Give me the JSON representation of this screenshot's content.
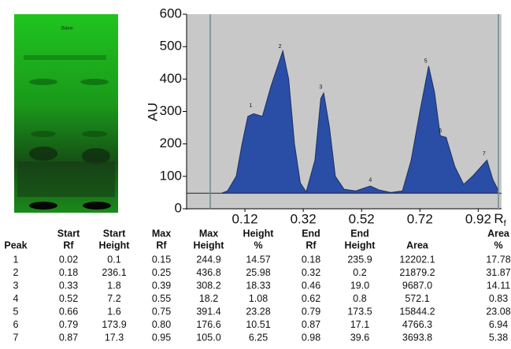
{
  "plate": {
    "label": "254nm"
  },
  "chart_data": {
    "type": "area",
    "y_label": "AU",
    "x_label": "R",
    "x_label_sub": "f",
    "xlim": [
      -0.08,
      1.0
    ],
    "ylim": [
      0,
      600
    ],
    "xticks": [
      0.12,
      0.32,
      0.52,
      0.72,
      0.92
    ],
    "yticks": [
      0,
      100,
      200,
      300,
      400,
      500,
      600
    ],
    "color": "#2a4ea6",
    "line_color": "#1d2f66",
    "baseline": 48,
    "x": [
      0.04,
      0.06,
      0.09,
      0.11,
      0.13,
      0.15,
      0.18,
      0.21,
      0.25,
      0.27,
      0.29,
      0.31,
      0.33,
      0.36,
      0.38,
      0.39,
      0.41,
      0.43,
      0.46,
      0.5,
      0.55,
      0.58,
      0.62,
      0.66,
      0.69,
      0.72,
      0.75,
      0.77,
      0.79,
      0.81,
      0.84,
      0.87,
      0.9,
      0.93,
      0.95,
      0.97,
      0.99
    ],
    "values": [
      48,
      55,
      100,
      200,
      285,
      293,
      285,
      380,
      487,
      400,
      200,
      80,
      52,
      150,
      340,
      357,
      250,
      100,
      60,
      55,
      70,
      58,
      50,
      55,
      150,
      300,
      440,
      360,
      225,
      220,
      130,
      75,
      100,
      130,
      150,
      90,
      55
    ],
    "annotations": [
      {
        "text": "1",
        "x": 0.14,
        "y": 318
      },
      {
        "text": "2",
        "x": 0.24,
        "y": 500
      },
      {
        "text": "3",
        "x": 0.38,
        "y": 375
      },
      {
        "text": "4",
        "x": 0.55,
        "y": 88
      },
      {
        "text": "5",
        "x": 0.74,
        "y": 455
      },
      {
        "text": "6",
        "x": 0.79,
        "y": 240
      },
      {
        "text": "7",
        "x": 0.94,
        "y": 170
      }
    ]
  },
  "table": {
    "header": [
      [
        "Peak"
      ],
      [
        "Start",
        "Rf"
      ],
      [
        "Start",
        "Height"
      ],
      [
        "Max",
        "Rf"
      ],
      [
        "Max",
        "Height"
      ],
      [
        "Height",
        "%"
      ],
      [
        "End",
        "Rf"
      ],
      [
        "End",
        "Height"
      ],
      [
        "Area"
      ],
      [
        "Area",
        "%"
      ]
    ],
    "rows": [
      [
        "1",
        "0.02",
        "0.1",
        "0.15",
        "244.9",
        "14.57",
        "0.18",
        "235.9",
        "12202.1",
        "17.78"
      ],
      [
        "2",
        "0.18",
        "236.1",
        "0.25",
        "436.8",
        "25.98",
        "0.32",
        "0.2",
        "21879.2",
        "31.87"
      ],
      [
        "3",
        "0.33",
        "1.8",
        "0.39",
        "308.2",
        "18.33",
        "0.46",
        "19.0",
        "9687.0",
        "14.11"
      ],
      [
        "4",
        "0.52",
        "7.2",
        "0.55",
        "18.2",
        "1.08",
        "0.62",
        "0.8",
        "572.1",
        "0.83"
      ],
      [
        "5",
        "0.66",
        "1.6",
        "0.75",
        "391.4",
        "23.28",
        "0.79",
        "173.5",
        "15844.2",
        "23.08"
      ],
      [
        "6",
        "0.79",
        "173.9",
        "0.80",
        "176.6",
        "10.51",
        "0.87",
        "17.1",
        "4766.3",
        "6.94"
      ],
      [
        "7",
        "0.87",
        "17.3",
        "0.95",
        "105.0",
        "6.25",
        "0.98",
        "39.6",
        "3693.8",
        "5.38"
      ]
    ]
  }
}
